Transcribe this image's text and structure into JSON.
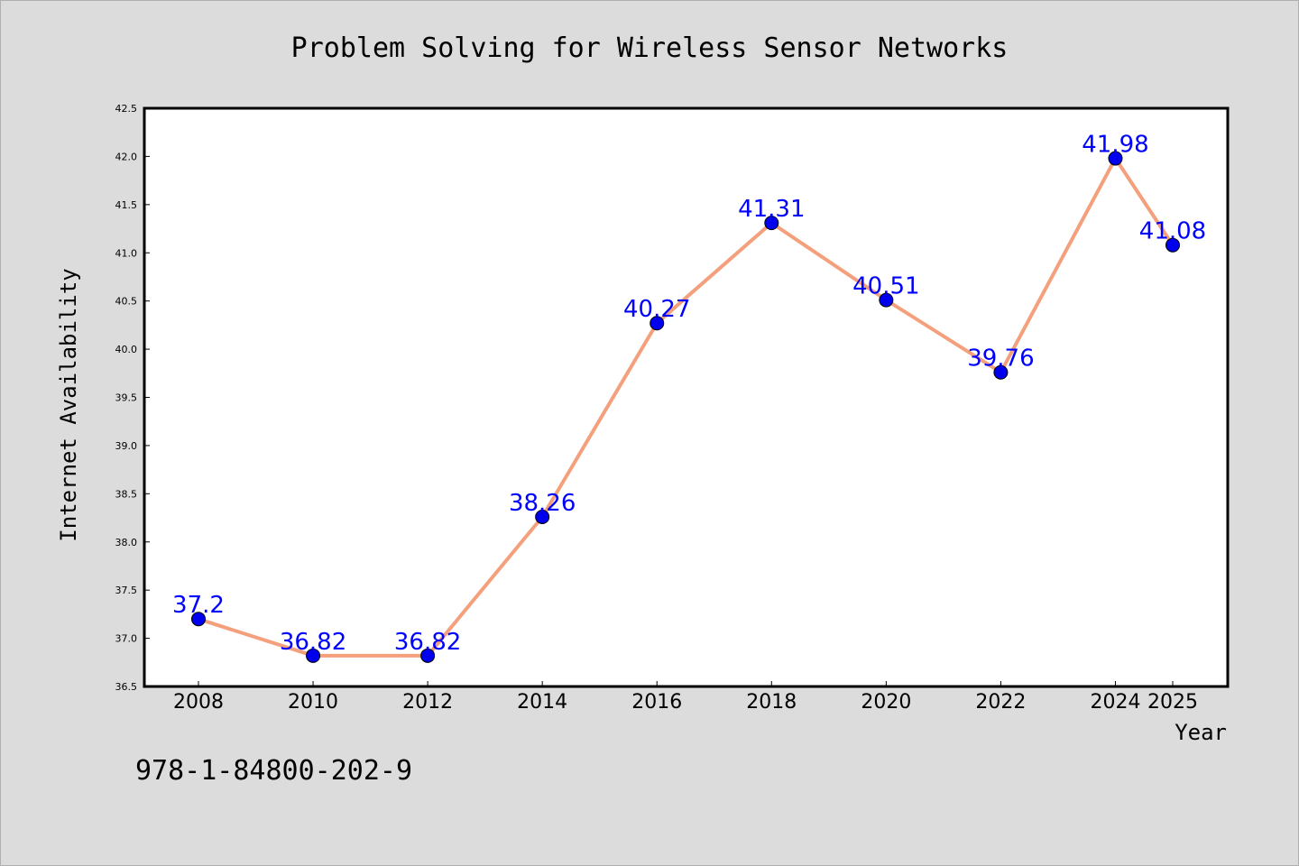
{
  "chart_data": {
    "type": "line",
    "title": "Problem Solving for Wireless Sensor Networks",
    "xlabel": "Year",
    "ylabel": "Internet Availability",
    "x": [
      "2008",
      "2010",
      "2012",
      "2014",
      "2016",
      "2018",
      "2020",
      "2022",
      "2024",
      "2025"
    ],
    "values": [
      37.2,
      36.82,
      36.82,
      38.26,
      40.27,
      41.31,
      40.51,
      39.76,
      41.98,
      41.08
    ],
    "data_labels": [
      "37.2",
      "36.82",
      "36.82",
      "38.26",
      "40.27",
      "41.31",
      "40.51",
      "39.76",
      "41.98",
      "41.08"
    ],
    "ylim": [
      36.5,
      42.5
    ],
    "yticks": [
      "36.5",
      "37.0",
      "37.5",
      "38.0",
      "38.5",
      "39.0",
      "39.5",
      "40.0",
      "40.5",
      "41.0",
      "41.5",
      "42.0",
      "42.5"
    ],
    "grid": false,
    "legend": "none",
    "line_color": "#f4a07c",
    "marker_color": "#0000ee",
    "label_color": "#0000ff"
  },
  "footnote": "978-1-84800-202-9"
}
